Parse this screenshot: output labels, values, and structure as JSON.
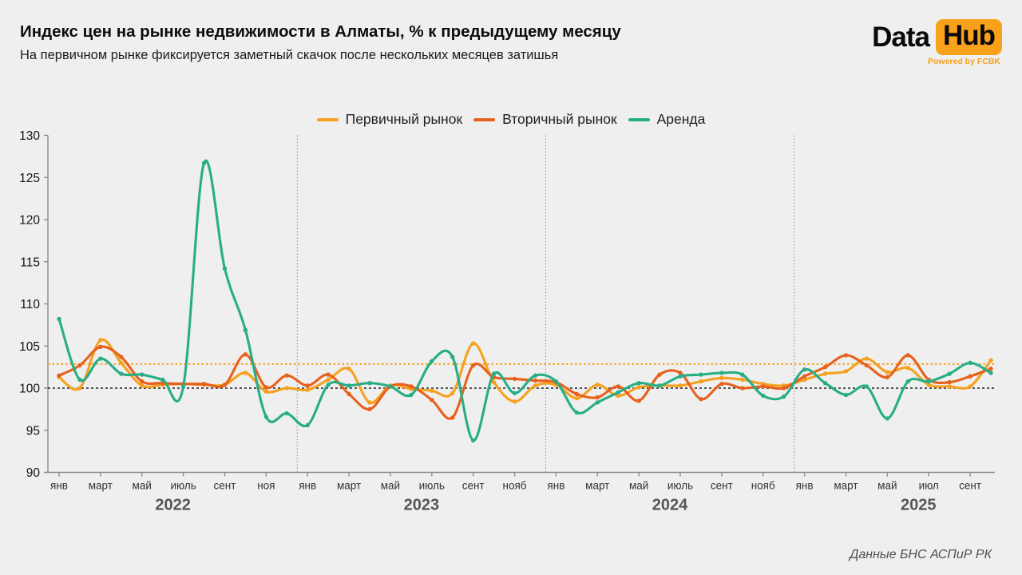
{
  "header": {
    "title": "Индекс цен на рынке недвижимости в Алматы, % к предыдущему месяцу",
    "subtitle": "На первичном рынке фиксируется заметный скачок после нескольких месяцев затишья"
  },
  "logo": {
    "part1": "Data",
    "part2": "Hub",
    "tagline": "Powered by FCBK",
    "accent_color": "#f9a11b"
  },
  "footer": {
    "source": "Данные БНС АСПиР РК"
  },
  "colors": {
    "background": "#efefef",
    "axis": "#8c8c8c",
    "tick_text": "#333333",
    "year_text": "#555555"
  },
  "chart_data": {
    "type": "line",
    "title": "Индекс цен на рынке недвижимости в Алматы, % к предыдущему месяцу",
    "x_period_start": "янв 2022",
    "x_period_end": "окт 2025",
    "n_points": 46,
    "ylim": [
      90,
      130
    ],
    "yticks": [
      90,
      95,
      100,
      105,
      110,
      115,
      120,
      125,
      130
    ],
    "grid": false,
    "legend_position": "top-center",
    "xticks": [
      {
        "i": 0,
        "label": "янв"
      },
      {
        "i": 2,
        "label": "март"
      },
      {
        "i": 4,
        "label": "май"
      },
      {
        "i": 6,
        "label": "июль"
      },
      {
        "i": 8,
        "label": "сент"
      },
      {
        "i": 10,
        "label": "ноя"
      },
      {
        "i": 12,
        "label": "янв"
      },
      {
        "i": 14,
        "label": "март"
      },
      {
        "i": 16,
        "label": "май"
      },
      {
        "i": 18,
        "label": "июль"
      },
      {
        "i": 20,
        "label": "сент"
      },
      {
        "i": 22,
        "label": "нояб"
      },
      {
        "i": 24,
        "label": "янв"
      },
      {
        "i": 26,
        "label": "март"
      },
      {
        "i": 28,
        "label": "май"
      },
      {
        "i": 30,
        "label": "июль"
      },
      {
        "i": 32,
        "label": "сент"
      },
      {
        "i": 34,
        "label": "нояб"
      },
      {
        "i": 36,
        "label": "янв"
      },
      {
        "i": 38,
        "label": "март"
      },
      {
        "i": 40,
        "label": "май"
      },
      {
        "i": 42,
        "label": "июл"
      },
      {
        "i": 44,
        "label": "сент"
      }
    ],
    "year_labels": [
      {
        "label": "2022",
        "month_center": 5.5
      },
      {
        "label": "2023",
        "month_center": 17.5
      },
      {
        "label": "2024",
        "month_center": 29.5
      },
      {
        "label": "2025",
        "month_center": 41.5
      }
    ],
    "year_dividers_month": [
      11.5,
      23.5,
      35.5
    ],
    "reference_lines": [
      {
        "value": 100.0,
        "color": "#222222",
        "dash": "dashed"
      },
      {
        "value": 102.85,
        "color": "#f5a11f",
        "dash": "dotted"
      }
    ],
    "series": [
      {
        "name": "Первичный рынок",
        "color": "#f5a11f",
        "values": [
          101.3,
          100.0,
          105.7,
          103.0,
          100.3,
          100.4,
          100.5,
          100.4,
          100.4,
          101.8,
          99.6,
          100.0,
          99.8,
          101.0,
          102.3,
          98.3,
          100.3,
          99.9,
          99.7,
          99.4,
          105.3,
          100.7,
          98.4,
          100.3,
          100.4,
          98.8,
          100.4,
          99.1,
          100.1,
          100.3,
          100.3,
          100.8,
          101.2,
          101.0,
          100.5,
          100.3,
          101.0,
          101.7,
          102.0,
          103.5,
          101.9,
          102.4,
          100.4,
          100.2,
          100.2,
          103.3
        ]
      },
      {
        "name": "Вторичный рынок",
        "color": "#e8611c",
        "values": [
          101.5,
          102.7,
          104.9,
          103.7,
          100.8,
          100.6,
          100.5,
          100.5,
          100.4,
          104.0,
          100.1,
          101.5,
          100.3,
          101.6,
          99.3,
          97.5,
          100.2,
          100.2,
          98.6,
          96.5,
          102.7,
          101.3,
          101.1,
          100.9,
          100.7,
          99.3,
          98.9,
          100.2,
          98.5,
          101.6,
          101.8,
          98.7,
          100.5,
          100.0,
          100.2,
          100.0,
          101.4,
          102.5,
          103.9,
          102.7,
          101.3,
          103.9,
          101.0,
          100.7,
          101.4,
          102.3
        ]
      },
      {
        "name": "Аренда",
        "color": "#27ae86",
        "values": [
          108.2,
          101.0,
          103.5,
          101.7,
          101.6,
          101.0,
          100.2,
          126.7,
          114.2,
          106.9,
          96.6,
          97.0,
          95.6,
          100.4,
          100.3,
          100.6,
          100.2,
          99.2,
          103.2,
          103.7,
          93.8,
          101.7,
          99.4,
          101.5,
          100.8,
          97.1,
          98.3,
          99.5,
          100.6,
          100.3,
          101.4,
          101.6,
          101.8,
          101.6,
          99.1,
          99.0,
          102.2,
          100.6,
          99.2,
          100.2,
          96.4,
          100.8,
          100.8,
          101.7,
          103.0,
          101.8
        ]
      }
    ]
  }
}
